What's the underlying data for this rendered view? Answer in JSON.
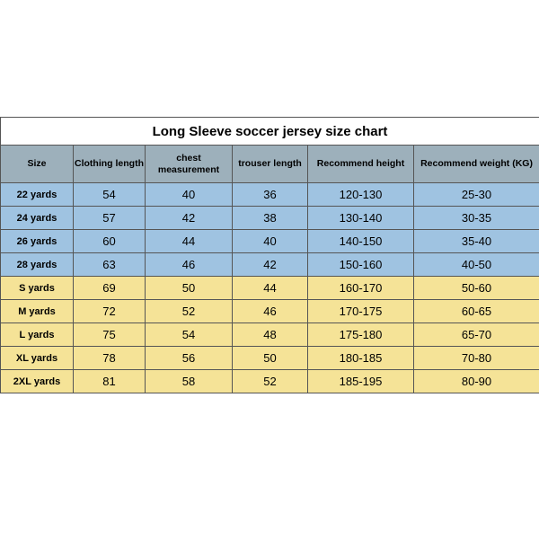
{
  "title": "Long Sleeve soccer jersey size chart",
  "colors": {
    "header_bg": "#9db0bb",
    "kid_bg": "#9fc3e1",
    "adult_bg": "#f5e397",
    "border": "#555555",
    "text": "#000000"
  },
  "columns": [
    {
      "label": "Size"
    },
    {
      "label": "Clothing length"
    },
    {
      "label": "chest measurement"
    },
    {
      "label": "trouser length"
    },
    {
      "label": "Recommend height"
    },
    {
      "label": "Recommend weight (KG)"
    }
  ],
  "rows": [
    {
      "group": "kid",
      "size": "22 yards",
      "clothing": "54",
      "chest": "40",
      "trouser": "36",
      "height": "120-130",
      "weight": "25-30"
    },
    {
      "group": "kid",
      "size": "24 yards",
      "clothing": "57",
      "chest": "42",
      "trouser": "38",
      "height": "130-140",
      "weight": "30-35"
    },
    {
      "group": "kid",
      "size": "26 yards",
      "clothing": "60",
      "chest": "44",
      "trouser": "40",
      "height": "140-150",
      "weight": "35-40"
    },
    {
      "group": "kid",
      "size": "28 yards",
      "clothing": "63",
      "chest": "46",
      "trouser": "42",
      "height": "150-160",
      "weight": "40-50"
    },
    {
      "group": "adult",
      "size": "S yards",
      "clothing": "69",
      "chest": "50",
      "trouser": "44",
      "height": "160-170",
      "weight": "50-60"
    },
    {
      "group": "adult",
      "size": "M yards",
      "clothing": "72",
      "chest": "52",
      "trouser": "46",
      "height": "170-175",
      "weight": "60-65"
    },
    {
      "group": "adult",
      "size": "L yards",
      "clothing": "75",
      "chest": "54",
      "trouser": "48",
      "height": "175-180",
      "weight": "65-70"
    },
    {
      "group": "adult",
      "size": "XL yards",
      "clothing": "78",
      "chest": "56",
      "trouser": "50",
      "height": "180-185",
      "weight": "70-80"
    },
    {
      "group": "adult",
      "size": "2XL yards",
      "clothing": "81",
      "chest": "58",
      "trouser": "52",
      "height": "185-195",
      "weight": "80-90"
    }
  ]
}
